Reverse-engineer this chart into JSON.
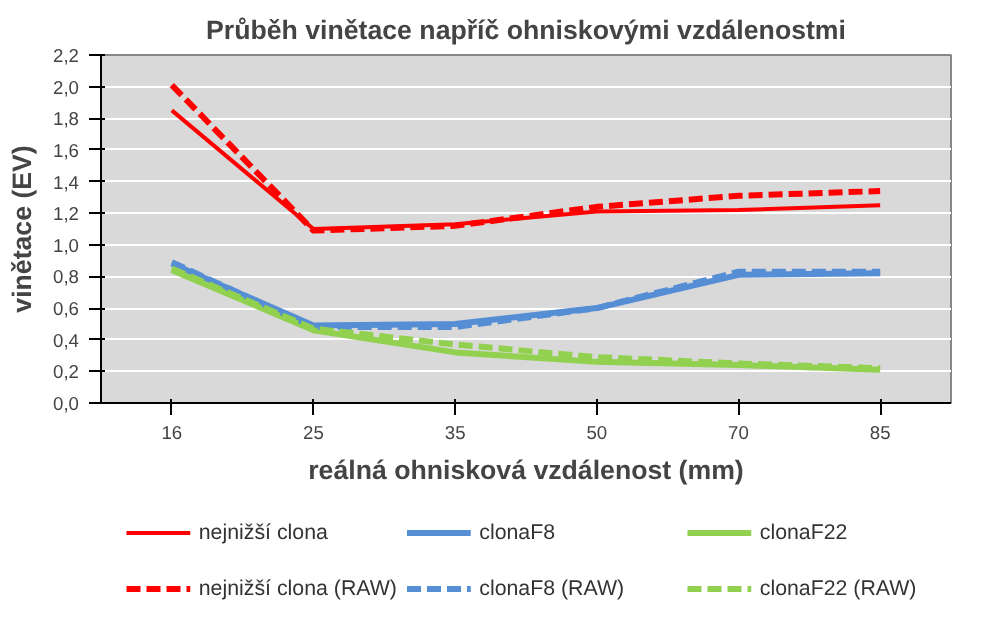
{
  "chart_data": {
    "type": "line",
    "title": "Průběh vinětace napříč ohniskovými vzdálenostmi",
    "xlabel": "reálná ohnisková vzdálenost (mm)",
    "ylabel": "vinětace (EV)",
    "categories": [
      "16",
      "25",
      "35",
      "50",
      "70",
      "85"
    ],
    "ylim": [
      0,
      2.2
    ],
    "yticks": [
      {
        "value": 0,
        "label": "0,0"
      },
      {
        "value": 0.2,
        "label": "0,2"
      },
      {
        "value": 0.4,
        "label": "0,4"
      },
      {
        "value": 0.6,
        "label": "0,6"
      },
      {
        "value": 0.8,
        "label": "0,8"
      },
      {
        "value": 1.0,
        "label": "1,0"
      },
      {
        "value": 1.2,
        "label": "1,2"
      },
      {
        "value": 1.4,
        "label": "1,4"
      },
      {
        "value": 1.6,
        "label": "1,6"
      },
      {
        "value": 1.8,
        "label": "1,8"
      },
      {
        "value": 2.0,
        "label": "2,0"
      },
      {
        "value": 2.2,
        "label": "2,2"
      }
    ],
    "grid": "y",
    "legend": "bottom",
    "marker": "none",
    "series": [
      {
        "name": "nejnižší clona",
        "color": "#ff0000",
        "line_style": "solid",
        "values": [
          1.85,
          1.1,
          1.13,
          1.21,
          1.22,
          1.25
        ]
      },
      {
        "name": "clonaF8",
        "color": "#558ed5",
        "line_style": "solid",
        "values": [
          0.88,
          0.49,
          0.5,
          0.6,
          0.81,
          0.82
        ]
      },
      {
        "name": "clonaF22",
        "color": "#92d050",
        "line_style": "solid",
        "values": [
          0.84,
          0.46,
          0.32,
          0.26,
          0.24,
          0.21
        ]
      },
      {
        "name": "nejnižší clona (RAW)",
        "color": "#ff0000",
        "line_style": "dashed",
        "values": [
          2.01,
          1.09,
          1.12,
          1.24,
          1.31,
          1.34
        ]
      },
      {
        "name": "clonaF8 (RAW)",
        "color": "#558ed5",
        "line_style": "dashed",
        "values": [
          0.89,
          0.48,
          0.48,
          0.6,
          0.83,
          0.83
        ]
      },
      {
        "name": "clonaF22 (RAW)",
        "color": "#92d050",
        "line_style": "dashed",
        "values": [
          0.85,
          0.47,
          0.37,
          0.29,
          0.25,
          0.22
        ]
      }
    ]
  }
}
